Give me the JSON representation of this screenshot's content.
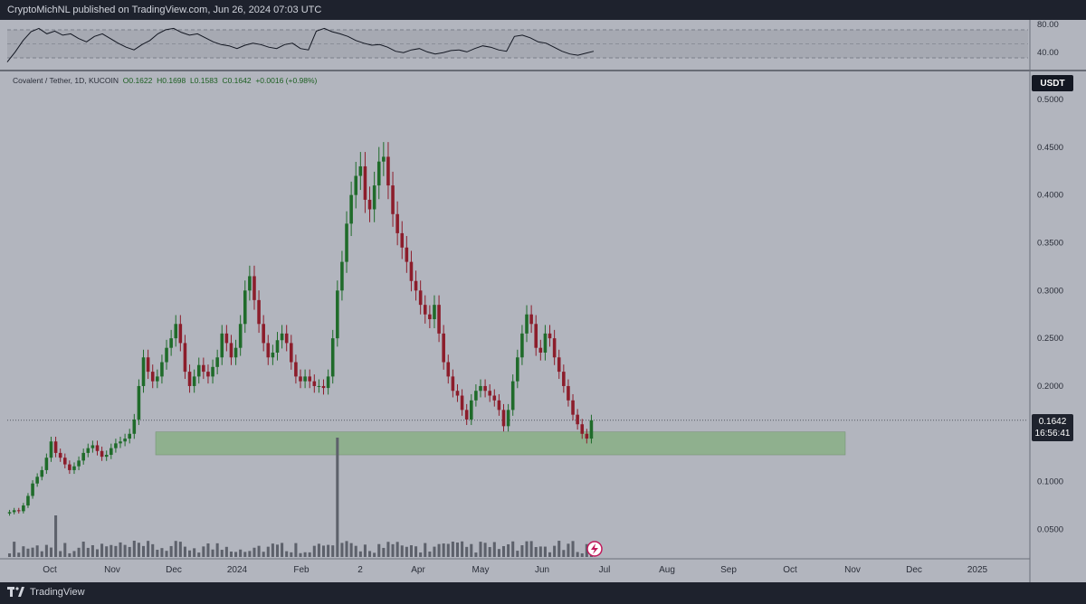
{
  "header": {
    "publisher_text": "CryptoMichNL published on TradingView.com, Jun 26, 2024 07:03 UTC"
  },
  "symbol": {
    "name": "Covalent / Tether, 1D, KUCOIN",
    "open": "O0.1622",
    "high": "H0.1698",
    "low": "L0.1583",
    "close": "C0.1642",
    "change": "+0.0016 (+0.98%)"
  },
  "currency_label": "USDT",
  "last_price": {
    "price": "0.1642",
    "countdown": "16:56:41"
  },
  "price_axis_labels": [
    "0.5000",
    "0.4500",
    "0.4000",
    "0.3500",
    "0.3000",
    "0.2500",
    "0.2000",
    "0.1500",
    "0.1000",
    "0.0500"
  ],
  "rsi_axis_labels": [
    "80.00",
    "40.00"
  ],
  "time_axis_labels": [
    "Oct",
    "Nov",
    "Dec",
    "2024",
    "Feb",
    "2",
    "Apr",
    "May",
    "Jun",
    "Jul",
    "Aug",
    "Sep",
    "Oct",
    "Nov",
    "Dec",
    "2025"
  ],
  "footer": {
    "brand": "TradingView"
  },
  "colors": {
    "background": "#b2b5be",
    "candle_up": "#1f6b2a",
    "candle_down": "#8c1d2b",
    "zone_fill": "#8fb08e",
    "rsi_line": "#131722",
    "accent_badge": "#c2185b"
  },
  "chart_data": {
    "type": "candlestick",
    "symbol": "Covalent / Tether",
    "timeframe": "1D",
    "exchange": "KUCOIN",
    "ylim": [
      0.01,
      0.5
    ],
    "support_zone": {
      "low": 0.128,
      "high": 0.152
    },
    "last_price": 0.1642,
    "closes": [
      0.068,
      0.07,
      0.069,
      0.075,
      0.085,
      0.098,
      0.105,
      0.112,
      0.125,
      0.142,
      0.13,
      0.125,
      0.118,
      0.112,
      0.116,
      0.122,
      0.13,
      0.135,
      0.138,
      0.132,
      0.126,
      0.128,
      0.135,
      0.14,
      0.142,
      0.145,
      0.15,
      0.165,
      0.2,
      0.23,
      0.215,
      0.205,
      0.21,
      0.225,
      0.24,
      0.25,
      0.265,
      0.245,
      0.215,
      0.2,
      0.21,
      0.222,
      0.215,
      0.21,
      0.22,
      0.23,
      0.255,
      0.245,
      0.23,
      0.24,
      0.265,
      0.3,
      0.315,
      0.29,
      0.265,
      0.245,
      0.23,
      0.235,
      0.248,
      0.255,
      0.245,
      0.225,
      0.21,
      0.205,
      0.21,
      0.205,
      0.2,
      0.2,
      0.198,
      0.21,
      0.25,
      0.3,
      0.33,
      0.37,
      0.4,
      0.42,
      0.43,
      0.395,
      0.385,
      0.41,
      0.435,
      0.44,
      0.41,
      0.38,
      0.36,
      0.345,
      0.33,
      0.31,
      0.3,
      0.285,
      0.275,
      0.27,
      0.285,
      0.255,
      0.225,
      0.21,
      0.195,
      0.19,
      0.175,
      0.165,
      0.185,
      0.195,
      0.2,
      0.195,
      0.19,
      0.185,
      0.175,
      0.158,
      0.175,
      0.205,
      0.23,
      0.255,
      0.275,
      0.265,
      0.24,
      0.235,
      0.255,
      0.25,
      0.23,
      0.215,
      0.2,
      0.185,
      0.17,
      0.16,
      0.15,
      0.145,
      0.1642
    ],
    "rsi_ylim": [
      20,
      90
    ],
    "rsi_levels": [
      70,
      50,
      30
    ],
    "rsi_values": [
      30,
      45,
      62,
      75,
      80,
      72,
      76,
      70,
      72,
      65,
      60,
      68,
      72,
      65,
      58,
      52,
      48,
      56,
      62,
      72,
      78,
      80,
      74,
      70,
      72,
      66,
      60,
      56,
      54,
      50,
      55,
      58,
      56,
      52,
      50,
      56,
      58,
      50,
      48,
      76,
      80,
      75,
      72,
      68,
      62,
      58,
      55,
      56,
      52,
      46,
      44,
      48,
      50,
      45,
      42,
      44,
      47,
      48,
      45,
      50,
      54,
      52,
      48,
      46,
      68,
      70,
      66,
      60,
      58,
      52,
      46,
      42,
      40,
      43,
      46
    ]
  }
}
